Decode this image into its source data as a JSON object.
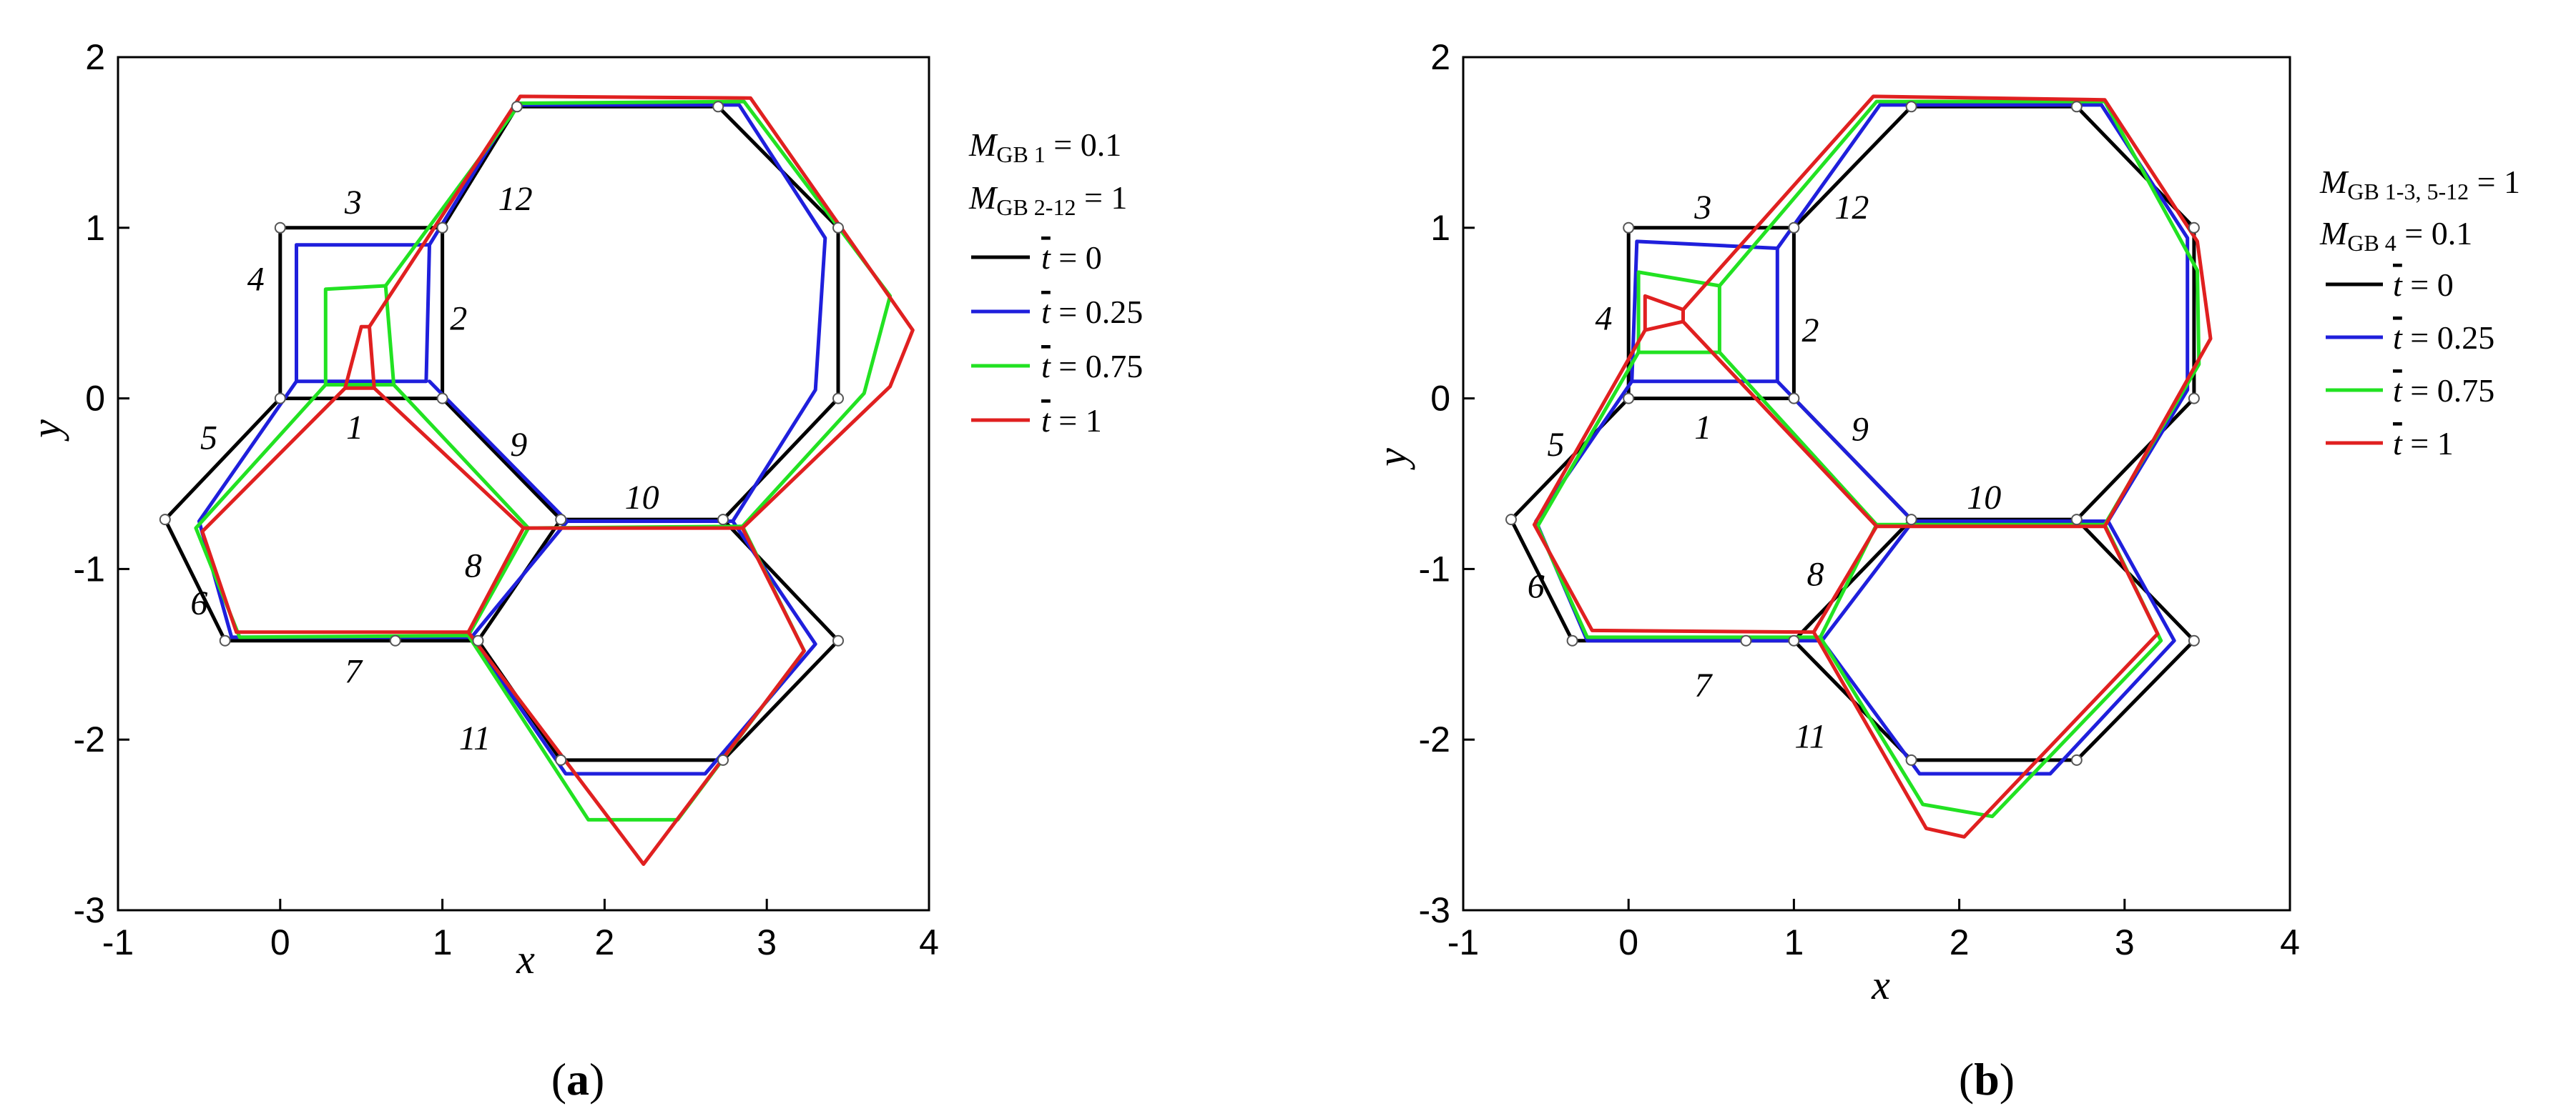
{
  "chart_data": [
    {
      "type": "line",
      "caption": "a",
      "xlabel": "x",
      "ylabel": "y",
      "xlim": [
        -1,
        4
      ],
      "ylim": [
        -3,
        2
      ],
      "xticks": [
        "-1",
        "0",
        "1",
        "2",
        "3",
        "4"
      ],
      "yticks": [
        "2",
        "1",
        "0",
        "-1",
        "-2",
        "-3"
      ],
      "legend_placement": "right",
      "mobility_lines": [
        {
          "sym": "M",
          "sub": "GB 1",
          "val": " = 0.1"
        },
        {
          "sym": "M",
          "sub": "GB 2-12",
          "val": " = 1"
        }
      ],
      "grain_labels": [
        {
          "text": "1",
          "x": 0.46,
          "y": -0.17
        },
        {
          "text": "2",
          "x": 1.1,
          "y": 0.47
        },
        {
          "text": "3",
          "x": 0.45,
          "y": 1.15
        },
        {
          "text": "4",
          "x": -0.15,
          "y": 0.7
        },
        {
          "text": "5",
          "x": -0.44,
          "y": -0.23
        },
        {
          "text": "6",
          "x": -0.5,
          "y": -1.2
        },
        {
          "text": "7",
          "x": 0.45,
          "y": -1.6
        },
        {
          "text": "8",
          "x": 1.19,
          "y": -0.98
        },
        {
          "text": "9",
          "x": 1.47,
          "y": -0.27
        },
        {
          "text": "10",
          "x": 2.23,
          "y": -0.58
        },
        {
          "text": "11",
          "x": 1.2,
          "y": -1.99
        },
        {
          "text": "12",
          "x": 1.45,
          "y": 1.17
        }
      ],
      "series": [
        {
          "name": "0",
          "color": "#000000",
          "segments": [
            [
              [
                0,
                0
              ],
              [
                1,
                0
              ],
              [
                1,
                1
              ],
              [
                0,
                1
              ],
              [
                0,
                0
              ]
            ],
            [
              [
                0,
                0
              ],
              [
                -0.71,
                -0.71
              ],
              [
                -0.34,
                -1.42
              ],
              [
                0.71,
                -1.42
              ],
              [
                1.22,
                -1.42
              ],
              [
                1.73,
                -2.12
              ],
              [
                2.73,
                -2.12
              ],
              [
                3.44,
                -1.42
              ],
              [
                2.73,
                -0.71
              ],
              [
                1.73,
                -0.71
              ],
              [
                1,
                0
              ]
            ],
            [
              [
                1,
                1
              ],
              [
                1.46,
                1.71
              ],
              [
                2.7,
                1.71
              ],
              [
                3.44,
                1
              ],
              [
                3.44,
                0
              ],
              [
                2.73,
                -0.71
              ]
            ],
            [
              [
                1.73,
                -0.71
              ],
              [
                1.22,
                -1.42
              ]
            ]
          ]
        },
        {
          "name": "0.25",
          "color": "#1f1fdc",
          "segments": [
            [
              [
                0.1,
                0.1
              ],
              [
                0.9,
                0.1
              ],
              [
                0.92,
                0.9
              ],
              [
                0.1,
                0.9
              ],
              [
                0.1,
                0.1
              ]
            ],
            [
              [
                0.1,
                0.1
              ],
              [
                -0.5,
                -0.72
              ],
              [
                -0.3,
                -1.4
              ],
              [
                1.18,
                -1.4
              ],
              [
                1.76,
                -2.2
              ],
              [
                2.62,
                -2.2
              ],
              [
                3.3,
                -1.44
              ],
              [
                2.79,
                -0.72
              ],
              [
                1.77,
                -0.72
              ],
              [
                0.92,
                0.1
              ]
            ],
            [
              [
                0.92,
                0.9
              ],
              [
                1.45,
                1.72
              ],
              [
                2.83,
                1.72
              ],
              [
                3.36,
                0.94
              ],
              [
                3.3,
                0.05
              ],
              [
                2.79,
                -0.72
              ]
            ],
            [
              [
                1.77,
                -0.72
              ],
              [
                1.18,
                -1.4
              ]
            ]
          ]
        },
        {
          "name": "0.75",
          "color": "#22e222",
          "segments": [
            [
              [
                0.28,
                0.08
              ],
              [
                0.7,
                0.08
              ],
              [
                0.65,
                0.66
              ],
              [
                0.28,
                0.64
              ],
              [
                0.28,
                0.08
              ]
            ],
            [
              [
                0.28,
                0.08
              ],
              [
                -0.52,
                -0.76
              ],
              [
                -0.25,
                -1.4
              ],
              [
                1.16,
                -1.39
              ],
              [
                1.9,
                -2.47
              ],
              [
                2.45,
                -2.47
              ],
              [
                3.23,
                -1.48
              ],
              [
                2.85,
                -0.75
              ],
              [
                1.53,
                -0.76
              ],
              [
                0.7,
                0.08
              ]
            ],
            [
              [
                0.65,
                0.66
              ],
              [
                1.48,
                1.73
              ],
              [
                2.86,
                1.74
              ],
              [
                3.76,
                0.6
              ],
              [
                3.6,
                0.03
              ],
              [
                2.85,
                -0.75
              ]
            ],
            [
              [
                1.53,
                -0.76
              ],
              [
                1.16,
                -1.39
              ]
            ]
          ]
        },
        {
          "name": "1",
          "color": "#e02020",
          "segments": [
            [
              [
                0.4,
                0.06
              ],
              [
                0.58,
                0.06
              ],
              [
                0.55,
                0.42
              ],
              [
                0.5,
                0.42
              ],
              [
                0.4,
                0.06
              ]
            ],
            [
              [
                0.4,
                0.06
              ],
              [
                -0.48,
                -0.78
              ],
              [
                -0.27,
                -1.37
              ],
              [
                1.16,
                -1.37
              ],
              [
                2.24,
                -2.73
              ],
              [
                3.23,
                -1.48
              ],
              [
                2.85,
                -0.76
              ],
              [
                1.5,
                -0.76
              ],
              [
                0.58,
                0.06
              ]
            ],
            [
              [
                0.55,
                0.42
              ],
              [
                1.48,
                1.77
              ],
              [
                2.9,
                1.76
              ],
              [
                3.9,
                0.4
              ],
              [
                3.76,
                0.07
              ],
              [
                2.85,
                -0.76
              ]
            ],
            [
              [
                1.5,
                -0.76
              ],
              [
                1.16,
                -1.37
              ]
            ]
          ]
        }
      ]
    },
    {
      "type": "line",
      "caption": "b",
      "xlabel": "x",
      "ylabel": "y",
      "xlim": [
        -1,
        4
      ],
      "ylim": [
        -3,
        2
      ],
      "xticks": [
        "-1",
        "0",
        "1",
        "2",
        "3",
        "4"
      ],
      "yticks": [
        "2",
        "1",
        "0",
        "-1",
        "-2",
        "-3"
      ],
      "legend_placement": "right",
      "mobility_lines": [
        {
          "sym": "M",
          "sub": "GB 1-3, 5-12",
          "val": " = 1"
        },
        {
          "sym": "M",
          "sub": "GB 4",
          "val": " = 0.1"
        }
      ],
      "grain_labels": [
        {
          "text": "1",
          "x": 0.45,
          "y": -0.17
        },
        {
          "text": "2",
          "x": 1.1,
          "y": 0.4
        },
        {
          "text": "3",
          "x": 0.45,
          "y": 1.12
        },
        {
          "text": "4",
          "x": -0.15,
          "y": 0.47
        },
        {
          "text": "5",
          "x": -0.44,
          "y": -0.27
        },
        {
          "text": "6",
          "x": -0.56,
          "y": -1.1
        },
        {
          "text": "7",
          "x": 0.45,
          "y": -1.68
        },
        {
          "text": "8",
          "x": 1.13,
          "y": -1.03
        },
        {
          "text": "9",
          "x": 1.4,
          "y": -0.18
        },
        {
          "text": "10",
          "x": 2.15,
          "y": -0.58
        },
        {
          "text": "11",
          "x": 1.1,
          "y": -1.98
        },
        {
          "text": "12",
          "x": 1.35,
          "y": 1.12
        }
      ],
      "series": [
        {
          "name": "0",
          "color": "#000000",
          "segments": [
            [
              [
                0,
                0
              ],
              [
                1,
                0
              ],
              [
                1,
                1
              ],
              [
                0,
                1
              ],
              [
                0,
                0
              ]
            ],
            [
              [
                0,
                0
              ],
              [
                -0.71,
                -0.71
              ],
              [
                -0.34,
                -1.42
              ],
              [
                0.71,
                -1.42
              ],
              [
                1.0,
                -1.42
              ],
              [
                1.71,
                -2.12
              ],
              [
                2.71,
                -2.12
              ],
              [
                3.42,
                -1.42
              ],
              [
                2.71,
                -0.71
              ],
              [
                1.71,
                -0.71
              ],
              [
                1,
                0
              ]
            ],
            [
              [
                1,
                1
              ],
              [
                1.71,
                1.71
              ],
              [
                2.71,
                1.71
              ],
              [
                3.42,
                1
              ],
              [
                3.42,
                0
              ],
              [
                2.71,
                -0.71
              ]
            ],
            [
              [
                1.71,
                -0.71
              ],
              [
                1.0,
                -1.42
              ]
            ]
          ]
        },
        {
          "name": "0.25",
          "color": "#1f1fdc",
          "segments": [
            [
              [
                0.02,
                0.1
              ],
              [
                0.9,
                0.1
              ],
              [
                0.9,
                0.88
              ],
              [
                0.05,
                0.92
              ],
              [
                0.02,
                0.1
              ]
            ],
            [
              [
                0.02,
                0.1
              ],
              [
                -0.56,
                -0.72
              ],
              [
                -0.25,
                -1.42
              ],
              [
                1.17,
                -1.42
              ],
              [
                1.76,
                -2.2
              ],
              [
                2.55,
                -2.2
              ],
              [
                3.3,
                -1.42
              ],
              [
                2.9,
                -0.72
              ],
              [
                1.72,
                -0.72
              ],
              [
                0.9,
                0.1
              ]
            ],
            [
              [
                0.9,
                0.88
              ],
              [
                1.52,
                1.72
              ],
              [
                2.86,
                1.72
              ],
              [
                3.38,
                0.94
              ],
              [
                3.38,
                0.05
              ],
              [
                2.9,
                -0.72
              ]
            ],
            [
              [
                1.72,
                -0.72
              ],
              [
                1.17,
                -1.42
              ]
            ]
          ]
        },
        {
          "name": "0.75",
          "color": "#22e222",
          "segments": [
            [
              [
                0.06,
                0.27
              ],
              [
                0.55,
                0.27
              ],
              [
                0.55,
                0.66
              ],
              [
                0.06,
                0.74
              ],
              [
                0.06,
                0.27
              ]
            ],
            [
              [
                0.06,
                0.27
              ],
              [
                -0.55,
                -0.75
              ],
              [
                -0.25,
                -1.4
              ],
              [
                1.16,
                -1.4
              ],
              [
                1.78,
                -2.38
              ],
              [
                2.2,
                -2.45
              ],
              [
                3.22,
                -1.42
              ],
              [
                2.88,
                -0.74
              ],
              [
                1.5,
                -0.74
              ],
              [
                0.55,
                0.27
              ]
            ],
            [
              [
                0.55,
                0.66
              ],
              [
                1.5,
                1.74
              ],
              [
                2.88,
                1.74
              ],
              [
                3.44,
                0.75
              ],
              [
                3.45,
                0.2
              ],
              [
                2.88,
                -0.74
              ]
            ],
            [
              [
                1.5,
                -0.74
              ],
              [
                1.16,
                -1.4
              ]
            ]
          ]
        },
        {
          "name": "1",
          "color": "#e02020",
          "segments": [
            [
              [
                0.1,
                0.4
              ],
              [
                0.33,
                0.45
              ],
              [
                0.33,
                0.52
              ],
              [
                0.1,
                0.6
              ],
              [
                0.1,
                0.4
              ]
            ],
            [
              [
                0.1,
                0.4
              ],
              [
                -0.57,
                -0.74
              ],
              [
                -0.22,
                -1.36
              ],
              [
                1.12,
                -1.37
              ],
              [
                1.8,
                -2.52
              ],
              [
                2.03,
                -2.57
              ],
              [
                3.2,
                -1.38
              ],
              [
                2.88,
                -0.75
              ],
              [
                1.5,
                -0.75
              ],
              [
                0.33,
                0.45
              ]
            ],
            [
              [
                0.33,
                0.52
              ],
              [
                1.48,
                1.77
              ],
              [
                2.88,
                1.75
              ],
              [
                3.44,
                0.92
              ],
              [
                3.52,
                0.35
              ],
              [
                2.88,
                -0.75
              ]
            ],
            [
              [
                1.5,
                -0.75
              ],
              [
                1.12,
                -1.37
              ]
            ]
          ]
        }
      ]
    }
  ],
  "legend": {
    "items": [
      {
        "tbar": "t",
        "val": " = 0",
        "color": "#000000"
      },
      {
        "tbar": "t",
        "val": " = 0.25",
        "color": "#1f1fdc"
      },
      {
        "tbar": "t",
        "val": " = 0.75",
        "color": "#22e222"
      },
      {
        "tbar": "t",
        "val": " = 1",
        "color": "#e02020"
      }
    ]
  }
}
